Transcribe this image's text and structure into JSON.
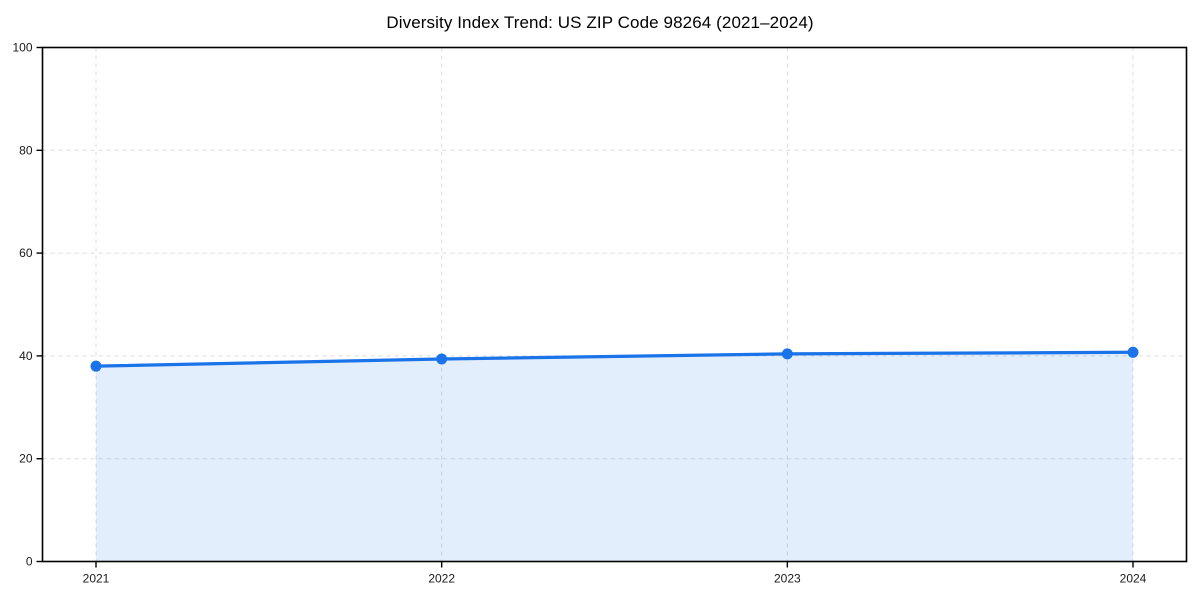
{
  "chart": {
    "title": "Diversity Index Trend: US ZIP Code 98264 (2021–2024)"
  },
  "chart_data": {
    "type": "area",
    "title": "Diversity Index Trend: US ZIP Code 98264 (2021–2024)",
    "categories": [
      "2021",
      "2022",
      "2023",
      "2024"
    ],
    "series": [
      {
        "name": "Diversity Index",
        "values": [
          38.0,
          39.4,
          40.4,
          40.7
        ]
      }
    ],
    "xlabel": "",
    "ylabel": "",
    "ylim": [
      0,
      100
    ],
    "yticks": [
      0,
      20,
      40,
      60,
      80,
      100
    ],
    "grid": true,
    "grid_style": "dashed",
    "legend_position": "none",
    "marker": "circle",
    "area_fill_to_zero": true,
    "colors": {
      "line": "#1a73e8",
      "marker": "#1a73e8",
      "fill": "#1a73e8",
      "fill_opacity": 0.12,
      "grid": "#dcdcdc",
      "axis": "#000000",
      "tick_text": "#1a1a1a",
      "background": "#ffffff"
    }
  }
}
